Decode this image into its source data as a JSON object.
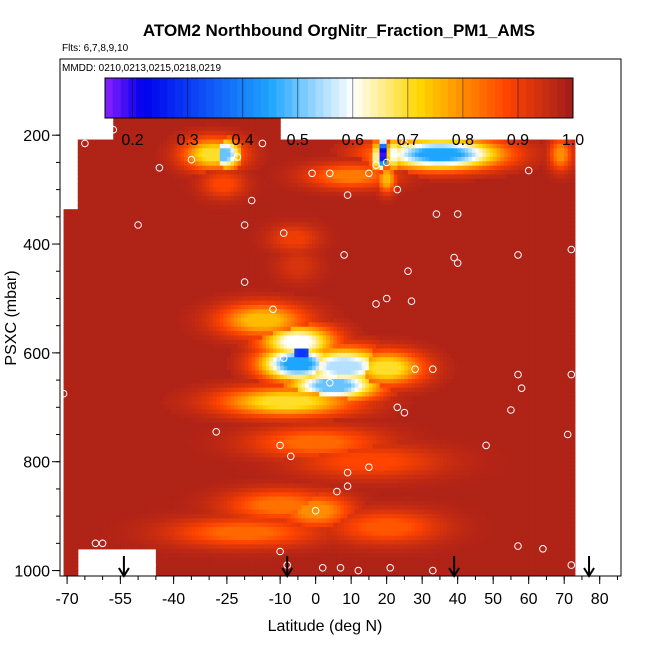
{
  "chart_data": {
    "type": "heatmap",
    "title": "ATOM2 Northbound OrgNitr_Fraction_PM1_AMS",
    "flights_label": "Flts: 6,7,8,9,10",
    "dates_label": "MMDD: 0210,0213,0215,0218,0219",
    "xlabel": "Latitude (deg N)",
    "ylabel": "PSXC (mbar)",
    "xlim": [
      -72,
      86
    ],
    "ylim": [
      1010,
      60
    ],
    "x_ticks": [
      -70,
      -55,
      -40,
      -25,
      -10,
      0,
      10,
      20,
      30,
      40,
      50,
      60,
      70,
      80
    ],
    "x_tick_labels": [
      "-70",
      "-55",
      "-40",
      "-25",
      "-10",
      "0",
      "10",
      "20",
      "30",
      "40",
      "50",
      "60",
      "70",
      "80"
    ],
    "x_minor_step": 5,
    "y_ticks": [
      200,
      400,
      600,
      800,
      1000
    ],
    "y_tick_labels": [
      "200",
      "400",
      "600",
      "800",
      "1000"
    ],
    "y_minor_step": 50,
    "colorbar": {
      "min": 0.15,
      "max": 1.0,
      "ticks": [
        0.2,
        0.3,
        0.4,
        0.5,
        0.6,
        0.7,
        0.8,
        0.9,
        1.0
      ],
      "tick_labels": [
        "0.2",
        "0.3",
        "0.4",
        "0.5",
        "0.6",
        "0.7",
        "0.8",
        "0.9",
        "1.0"
      ],
      "colors": [
        "#8b1fff",
        "#0000ee",
        "#1ea5ff",
        "#ffffff",
        "#ffd700",
        "#ff4400",
        "#a01c1c"
      ],
      "color_stops": [
        0.15,
        0.22,
        0.45,
        0.6,
        0.72,
        0.88,
        1.0
      ]
    },
    "background_value": 0.98,
    "coverage": [
      {
        "lat_min": -67,
        "lat_max": 73,
        "p_top": 210,
        "p_bottom": 960
      },
      {
        "lat_min": -57,
        "lat_max": -10,
        "p_top": 165,
        "p_bottom": 210
      },
      {
        "lat_min": -45,
        "lat_max": 73,
        "p_top": 960,
        "p_bottom": 1005
      },
      {
        "lat_min": -71,
        "lat_max": -67,
        "p_top": 340,
        "p_bottom": 1005
      }
    ],
    "features": [
      {
        "lat": -26,
        "p": 235,
        "value": 0.5,
        "lat_w": 5,
        "p_w": 26
      },
      {
        "lat": -29,
        "p": 235,
        "value": 0.7,
        "lat_w": 8,
        "p_w": 28
      },
      {
        "lat": -26,
        "p": 290,
        "value": 0.88,
        "lat_w": 6,
        "p_w": 25
      },
      {
        "lat": 19,
        "p": 235,
        "value": 0.18,
        "lat_w": 1.3,
        "p_w": 28
      },
      {
        "lat": 22,
        "p": 235,
        "value": 0.6,
        "lat_w": 1.5,
        "p_w": 30
      },
      {
        "lat": 17,
        "p": 240,
        "value": 0.65,
        "lat_w": 1.5,
        "p_w": 30
      },
      {
        "lat": 20,
        "p": 280,
        "value": 0.75,
        "lat_w": 2.5,
        "p_w": 24
      },
      {
        "lat": 35,
        "p": 235,
        "value": 0.45,
        "lat_w": 16,
        "p_w": 26
      },
      {
        "lat": 69,
        "p": 235,
        "value": 0.8,
        "lat_w": 3,
        "p_w": 28
      },
      {
        "lat": 10,
        "p": 275,
        "value": 0.82,
        "lat_w": 12,
        "p_w": 22
      },
      {
        "lat": -6,
        "p": 390,
        "value": 0.9,
        "lat_w": 7,
        "p_w": 25
      },
      {
        "lat": -5,
        "p": 440,
        "value": 0.93,
        "lat_w": 6,
        "p_w": 30
      },
      {
        "lat": -5,
        "p": 580,
        "value": 0.6,
        "lat_w": 10,
        "p_w": 30
      },
      {
        "lat": -4,
        "p": 600,
        "value": 0.3,
        "lat_w": 4,
        "p_w": 30
      },
      {
        "lat": -5,
        "p": 620,
        "value": 0.45,
        "lat_w": 10,
        "p_w": 30
      },
      {
        "lat": 8,
        "p": 625,
        "value": 0.55,
        "lat_w": 12,
        "p_w": 32
      },
      {
        "lat": 20,
        "p": 628,
        "value": 0.7,
        "lat_w": 10,
        "p_w": 30
      },
      {
        "lat": 5,
        "p": 660,
        "value": 0.5,
        "lat_w": 12,
        "p_w": 26
      },
      {
        "lat": -15,
        "p": 540,
        "value": 0.75,
        "lat_w": 12,
        "p_w": 30
      },
      {
        "lat": -8,
        "p": 690,
        "value": 0.7,
        "lat_w": 18,
        "p_w": 26
      },
      {
        "lat": 0,
        "p": 765,
        "value": 0.84,
        "lat_w": 18,
        "p_w": 28
      },
      {
        "lat": 15,
        "p": 800,
        "value": 0.88,
        "lat_w": 20,
        "p_w": 30
      },
      {
        "lat": -10,
        "p": 880,
        "value": 0.83,
        "lat_w": 15,
        "p_w": 28
      },
      {
        "lat": 0,
        "p": 890,
        "value": 0.8,
        "lat_w": 10,
        "p_w": 30
      },
      {
        "lat": -20,
        "p": 930,
        "value": 0.84,
        "lat_w": 20,
        "p_w": 26
      },
      {
        "lat": 20,
        "p": 920,
        "value": 0.86,
        "lat_w": 15,
        "p_w": 30
      }
    ],
    "observations": [
      [
        -65,
        215
      ],
      [
        -57,
        190
      ],
      [
        -44,
        260
      ],
      [
        -35,
        245
      ],
      [
        -22,
        240
      ],
      [
        -18,
        320
      ],
      [
        -15,
        215
      ],
      [
        -50,
        365
      ],
      [
        -9,
        380
      ],
      [
        -1,
        270
      ],
      [
        4,
        270
      ],
      [
        9,
        310
      ],
      [
        15,
        270
      ],
      [
        17,
        255
      ],
      [
        20,
        250
      ],
      [
        25,
        215
      ],
      [
        23,
        300
      ],
      [
        34,
        345
      ],
      [
        40,
        345
      ],
      [
        60,
        265
      ],
      [
        72,
        410
      ],
      [
        57,
        420
      ],
      [
        8,
        420
      ],
      [
        39,
        425
      ],
      [
        40,
        435
      ],
      [
        -20,
        470
      ],
      [
        -20,
        365
      ],
      [
        -12,
        520
      ],
      [
        17,
        510
      ],
      [
        20,
        500
      ],
      [
        27,
        505
      ],
      [
        26,
        450
      ],
      [
        -9,
        610
      ],
      [
        4,
        655
      ],
      [
        28,
        630
      ],
      [
        33,
        630
      ],
      [
        23,
        700
      ],
      [
        25,
        710
      ],
      [
        57,
        640
      ],
      [
        58,
        665
      ],
      [
        55,
        705
      ],
      [
        72,
        640
      ],
      [
        -28,
        745
      ],
      [
        -10,
        770
      ],
      [
        48,
        770
      ],
      [
        71,
        750
      ],
      [
        -7,
        790
      ],
      [
        15,
        810
      ],
      [
        9,
        820
      ],
      [
        6,
        855
      ],
      [
        9,
        845
      ],
      [
        0,
        890
      ],
      [
        -62,
        950
      ],
      [
        -60,
        950
      ],
      [
        -46,
        990
      ],
      [
        -10,
        965
      ],
      [
        -8,
        990
      ],
      [
        2,
        995
      ],
      [
        7,
        995
      ],
      [
        12,
        1000
      ],
      [
        21,
        995
      ],
      [
        33,
        1000
      ],
      [
        57,
        955
      ],
      [
        64,
        960
      ],
      [
        72,
        990
      ],
      [
        -71,
        675
      ]
    ],
    "flight_markers": [
      -54,
      -8,
      39,
      77
    ]
  }
}
